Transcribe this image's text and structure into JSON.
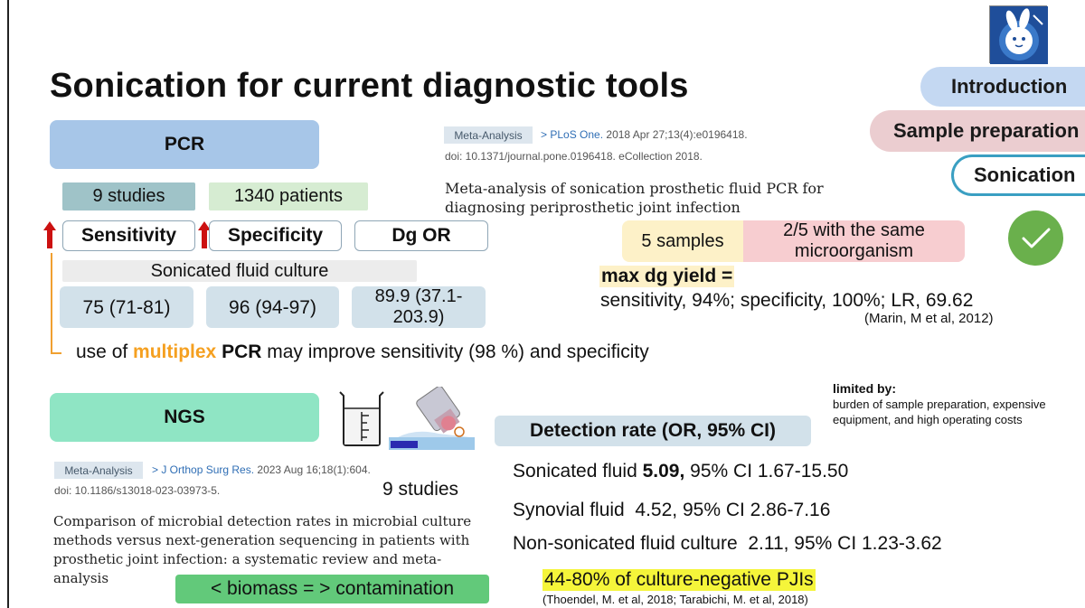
{
  "title": "Sonication for current diagnostic tools",
  "nav": {
    "introduction": "Introduction",
    "sample_preparation": "Sample preparation",
    "sonication": "Sonication"
  },
  "pcr": {
    "label": "PCR",
    "studies": "9 studies",
    "patients": "1340 patients",
    "headers": {
      "sensitivity": "Sensitivity",
      "specificity": "Specificity",
      "dg_or": "Dg OR"
    },
    "sonicated_fluid_culture": "Sonicated fluid culture",
    "values": {
      "sensitivity": "75 (71-81)",
      "specificity": "96 (94-97)",
      "dg_or": "89.9 (37.1-203.9)"
    },
    "multiplex_note": {
      "prefix": "use of ",
      "highlight": "multiplex",
      "bold": " PCR",
      "suffix": " may improve sensitivity (98 %) and specificity"
    }
  },
  "meta_analysis_1": {
    "badge": "Meta-Analysis",
    "journal": "PLoS One.",
    "citation": " 2018 Apr 27;13(4):e0196418.",
    "doi": "doi: 10.1371/journal.pone.0196418. eCollection 2018.",
    "title": "Meta-analysis of sonication prosthetic fluid PCR for diagnosing periprosthetic joint infection"
  },
  "marin": {
    "samples": "5 samples",
    "same_microorganism": "2/5 with the same microorganism",
    "max_dg_yield": "max dg yield =",
    "stats": "sensitivity, 94%; specificity, 100%; LR, 69.62",
    "reference": "(Marin, M et al, 2012)"
  },
  "ngs": {
    "label": "NGS",
    "limited_by_heading": "limited by:",
    "limited_by_text": "burden of sample preparation, expensive equipment, and high operating costs",
    "detection_header": "Detection rate (OR, 95% CI)",
    "rows": [
      {
        "label": "Sonicated fluid ",
        "or": "5.09,",
        "ci": " 95% CI 1.67-15.50"
      },
      {
        "label": "Synovial fluid  ",
        "or": "4.52,",
        "ci": " 95% CI 2.86-7.16"
      },
      {
        "label": "Non-sonicated fluid culture  ",
        "or": "2.11,",
        "ci": " 95% CI 1.23-3.62"
      }
    ],
    "culture_negative": "44-80% of culture-negative PJIs",
    "culture_negative_ref": "(Thoendel, M. et al, 2018; Tarabichi, M. et al, 2018)",
    "biomass": "< biomass = > contamination",
    "studies": "9 studies"
  },
  "meta_analysis_2": {
    "badge": "Meta-Analysis",
    "journal": "J Orthop Surg Res.",
    "citation": " 2023 Aug 16;18(1):604.",
    "doi": "doi: 10.1186/s13018-023-03973-5.",
    "title": "Comparison of microbial detection rates in microbial culture methods versus next-generation sequencing in patients with prosthetic joint infection: a systematic review and meta-analysis"
  },
  "colors": {
    "pcr_blue": "#a7c6e8",
    "ngs_green": "#8fe5c4",
    "orange": "#f5a020",
    "arrow_red": "#cc1111",
    "check_green": "#6ab04c",
    "sonication_border": "#3a9fc2"
  },
  "icons": {
    "logo": "rabbit-logo-icon",
    "arrow": "arrow-up-icon",
    "check": "checkmark-icon",
    "beaker": "beaker-icon",
    "sonicator": "sonicator-probe-icon"
  }
}
